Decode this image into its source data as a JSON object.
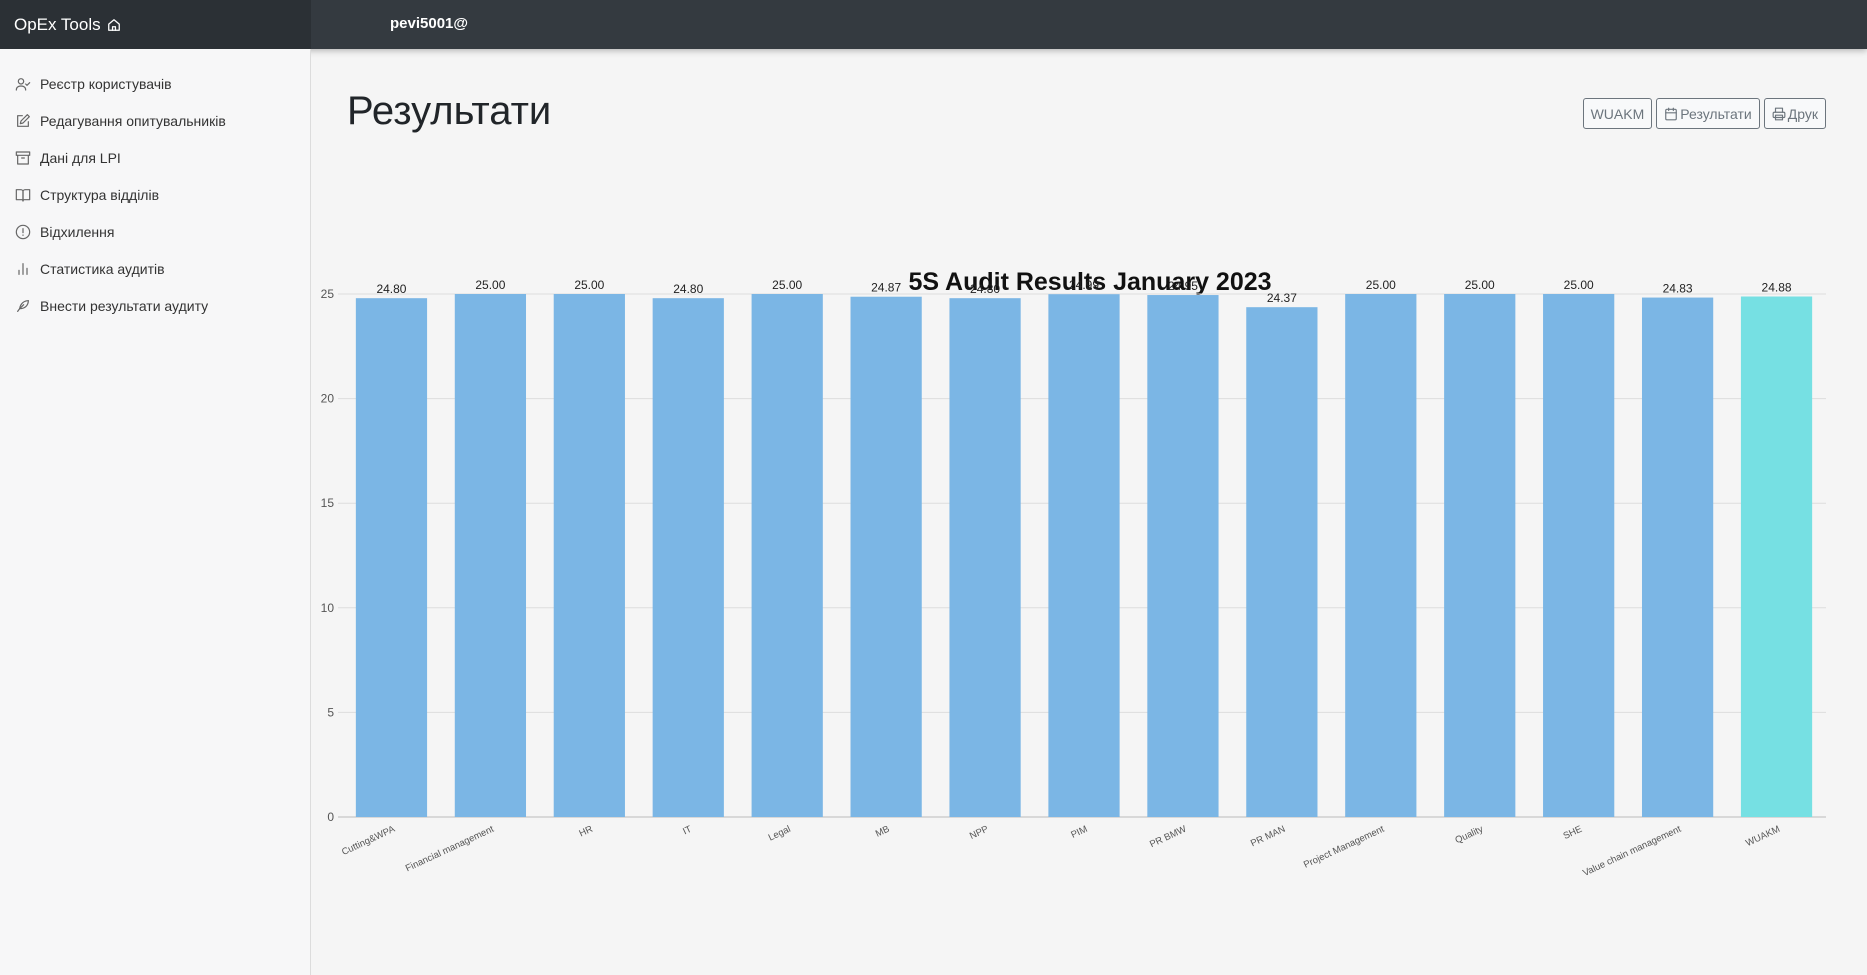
{
  "topbar": {
    "brand": "OpEx Tools",
    "brand_icon": "home-icon",
    "user": "pevi5001@"
  },
  "sidebar": {
    "items": [
      {
        "label": "Реєстр користувачів",
        "icon": "user-check-icon"
      },
      {
        "label": "Редагування опитувальників",
        "icon": "edit-icon"
      },
      {
        "label": "Дані для LPI",
        "icon": "archive-icon"
      },
      {
        "label": "Структура відділів",
        "icon": "book-open-icon"
      },
      {
        "label": "Відхилення",
        "icon": "alert-circle-icon"
      },
      {
        "label": "Статистика аудитів",
        "icon": "bar-chart-icon"
      },
      {
        "label": "Внести результати аудиту",
        "icon": "feather-icon"
      }
    ]
  },
  "main": {
    "title": "Результати",
    "buttons": {
      "department": "WUAKM",
      "results": "Результати",
      "print": "Друк"
    }
  },
  "colors": {
    "bar": "#7bb6e5",
    "bar_highlight": "#76e0e3",
    "topbar": "#343a40"
  },
  "chart_data": {
    "type": "bar",
    "title": "5S Audit Results January 2023",
    "categories": [
      "Cutting&WPA",
      "Financial management",
      "HR",
      "IT",
      "Legal",
      "MB",
      "NPP",
      "PIM",
      "PR BMW",
      "PR MAN",
      "Project Management",
      "Quality",
      "SHE",
      "Value chain management",
      "WUAKM"
    ],
    "values": [
      24.8,
      25.0,
      25.0,
      24.8,
      25.0,
      24.87,
      24.8,
      24.99,
      24.95,
      24.37,
      25.0,
      25.0,
      25.0,
      24.83,
      24.88
    ],
    "value_labels": [
      "24.80",
      "25.00",
      "25.00",
      "24.80",
      "25.00",
      "24.87",
      "24.80",
      "24.99",
      "24.95",
      "24.37",
      "25.00",
      "25.00",
      "25.00",
      "24.83",
      "24.88"
    ],
    "highlight_category": "WUAKM",
    "ylim": [
      0,
      25
    ],
    "yticks": [
      "0",
      "5",
      "10",
      "15",
      "20",
      "25"
    ],
    "grid": true,
    "legend": "none"
  }
}
